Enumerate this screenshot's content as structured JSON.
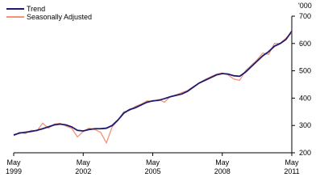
{
  "chart_data": {
    "type": "line",
    "unit_label": "'000",
    "x": [
      "May 1999",
      "Aug 1999",
      "Nov 1999",
      "Feb 2000",
      "May 2000",
      "Aug 2000",
      "Nov 2000",
      "Feb 2001",
      "May 2001",
      "Aug 2001",
      "Nov 2001",
      "Feb 2002",
      "May 2002",
      "Aug 2002",
      "Nov 2002",
      "Feb 2003",
      "May 2003",
      "Aug 2003",
      "Nov 2003",
      "Feb 2004",
      "May 2004",
      "Aug 2004",
      "Nov 2004",
      "Feb 2005",
      "May 2005",
      "Aug 2005",
      "Nov 2005",
      "Feb 2006",
      "May 2006",
      "Aug 2006",
      "Nov 2006",
      "Feb 2007",
      "May 2007",
      "Aug 2007",
      "Nov 2007",
      "Feb 2008",
      "May 2008",
      "Aug 2008",
      "Nov 2008",
      "Feb 2009",
      "May 2009",
      "Aug 2009",
      "Nov 2009",
      "Feb 2010",
      "May 2010",
      "Aug 2010",
      "Nov 2010",
      "Feb 2011",
      "May 2011"
    ],
    "series": [
      {
        "name": "Trend",
        "color": "#1f1a6e",
        "values": [
          265,
          272,
          275,
          278,
          282,
          288,
          295,
          302,
          305,
          302,
          295,
          282,
          280,
          285,
          288,
          288,
          290,
          300,
          320,
          345,
          358,
          365,
          375,
          385,
          390,
          392,
          398,
          405,
          410,
          415,
          425,
          440,
          455,
          465,
          475,
          485,
          490,
          488,
          482,
          480,
          495,
          515,
          535,
          555,
          570,
          590,
          600,
          615,
          645
        ]
      },
      {
        "name": "Seasonally Adjusted",
        "color": "#f4937a",
        "values": [
          262,
          275,
          270,
          282,
          280,
          308,
          290,
          305,
          308,
          298,
          290,
          258,
          278,
          290,
          285,
          275,
          236,
          295,
          318,
          350,
          355,
          370,
          378,
          390,
          388,
          395,
          385,
          405,
          412,
          420,
          428,
          442,
          455,
          468,
          478,
          488,
          492,
          485,
          470,
          465,
          500,
          520,
          540,
          565,
          560,
          600,
          600,
          620,
          640
        ]
      }
    ],
    "xticks": [
      "May 1999",
      "May 2002",
      "May 2005",
      "May 2008",
      "May 2011"
    ],
    "ylim": [
      200,
      700
    ],
    "yticks": [
      200,
      300,
      400,
      500,
      600,
      700
    ]
  }
}
